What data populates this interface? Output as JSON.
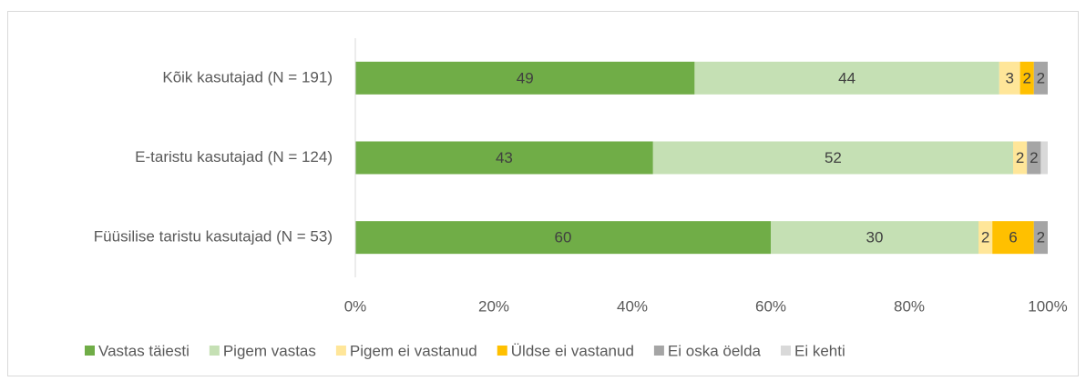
{
  "chart_data": {
    "type": "stacked_bar_horizontal",
    "categories": [
      "Kõik kasutajad (N = 191)",
      "E-taristu kasutajad (N = 124)",
      "Füüsilise taristu kasutajad (N = 53)"
    ],
    "series": [
      {
        "name": "Vastas täiesti",
        "color": "#70ad47",
        "values": [
          49,
          43,
          60
        ],
        "value_labels": [
          "49",
          "43",
          "60"
        ]
      },
      {
        "name": "Pigem vastas",
        "color": "#c5e0b4",
        "values": [
          44,
          52,
          30
        ],
        "value_labels": [
          "44",
          "52",
          "30"
        ]
      },
      {
        "name": "Pigem ei vastanud",
        "color": "#ffe699",
        "values": [
          3,
          2,
          2
        ],
        "value_labels": [
          "3",
          "2",
          "2"
        ]
      },
      {
        "name": "Üldse ei vastanud",
        "color": "#ffc000",
        "values": [
          2,
          0,
          6
        ],
        "value_labels": [
          "2",
          null,
          "6"
        ]
      },
      {
        "name": "Ei oska öelda",
        "color": "#a5a5a5",
        "values": [
          2,
          2,
          2
        ],
        "value_labels": [
          "2",
          "2",
          "2"
        ]
      },
      {
        "name": "Ei kehti",
        "color": "#d9d9d9",
        "values": [
          0,
          1,
          0
        ],
        "value_labels": [
          null,
          null,
          null
        ]
      }
    ],
    "xlim": [
      0,
      100
    ],
    "xticks": [
      {
        "value": 0,
        "label": "0%"
      },
      {
        "value": 20,
        "label": "20%"
      },
      {
        "value": 40,
        "label": "40%"
      },
      {
        "value": 60,
        "label": "60%"
      },
      {
        "value": 80,
        "label": "80%"
      },
      {
        "value": 100,
        "label": "100%"
      }
    ],
    "legend": "bottom"
  }
}
